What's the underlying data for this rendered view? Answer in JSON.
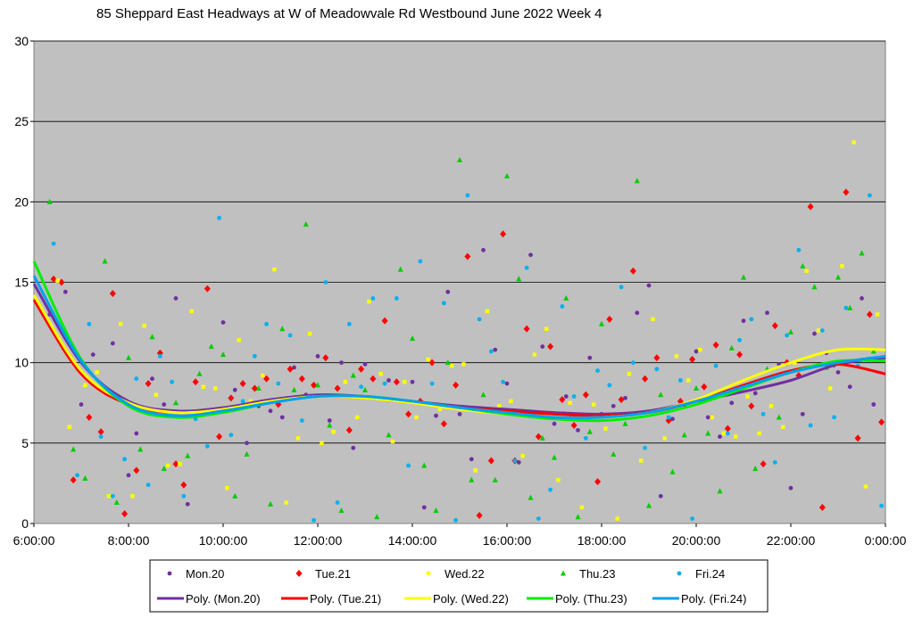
{
  "chart_data": {
    "type": "scatter",
    "title": "85 Sheppard East Headways at W of Meadowvale Rd Westbound June 2022  Week 4",
    "xlabel": "",
    "ylabel": "",
    "x_range": [
      "6:00:00",
      "0:00:00"
    ],
    "x_ticks": [
      "6:00:00",
      "8:00:00",
      "10:00:00",
      "12:00:00",
      "14:00:00",
      "16:00:00",
      "18:00:00",
      "20:00:00",
      "22:00:00",
      "0:00:00"
    ],
    "ylim": [
      0,
      30
    ],
    "y_ticks": [
      "0",
      "5",
      "10",
      "15",
      "20",
      "25",
      "30"
    ],
    "grid": "horizontal",
    "plot_background": "#c0c0c0",
    "legend_position": "bottom",
    "series": [
      {
        "name": "Mon.20",
        "marker": "circle",
        "color": "#7030a0",
        "x": [
          "6:20",
          "6:40",
          "7:00",
          "7:15",
          "7:40",
          "8:00",
          "8:10",
          "8:30",
          "8:45",
          "9:00",
          "9:15",
          "9:30",
          "10:00",
          "10:15",
          "10:30",
          "10:45",
          "11:00",
          "11:15",
          "11:30",
          "11:45",
          "12:00",
          "12:15",
          "12:30",
          "12:45",
          "13:00",
          "13:30",
          "14:00",
          "14:15",
          "14:30",
          "14:45",
          "15:00",
          "15:15",
          "15:30",
          "15:45",
          "16:00",
          "16:15",
          "16:30",
          "16:45",
          "17:00",
          "17:15",
          "17:30",
          "17:45",
          "18:00",
          "18:15",
          "18:30",
          "18:45",
          "19:00",
          "19:15",
          "19:30",
          "19:45",
          "20:00",
          "20:15",
          "20:30",
          "20:45",
          "21:00",
          "21:15",
          "21:30",
          "21:45",
          "22:00",
          "22:15",
          "22:30",
          "22:45",
          "23:00",
          "23:15",
          "23:30",
          "23:45"
        ],
        "y": [
          13.0,
          14.4,
          7.4,
          10.5,
          11.2,
          3.0,
          5.6,
          9.0,
          7.4,
          14.0,
          1.2,
          6.8,
          12.5,
          8.3,
          5.0,
          7.3,
          7.0,
          6.6,
          9.7,
          8.0,
          10.4,
          6.4,
          10.0,
          4.7,
          9.9,
          8.9,
          8.8,
          1.0,
          6.7,
          14.4,
          6.8,
          4.0,
          17.0,
          10.8,
          8.7,
          3.8,
          16.7,
          11.0,
          6.2,
          7.9,
          5.8,
          10.3,
          6.8,
          7.3,
          7.8,
          13.1,
          14.8,
          1.7,
          6.5,
          7.4,
          10.7,
          6.6,
          5.4,
          7.5,
          12.6,
          8.1,
          13.1,
          9.9,
          2.2,
          6.8,
          11.8,
          10.6,
          9.4,
          8.5,
          14.0,
          7.4
        ]
      },
      {
        "name": "Tue.21",
        "marker": "diamond",
        "color": "#ff0000",
        "x": [
          "6:25",
          "6:35",
          "6:50",
          "7:10",
          "7:25",
          "7:40",
          "7:55",
          "8:10",
          "8:25",
          "8:40",
          "9:00",
          "9:10",
          "9:25",
          "9:40",
          "9:55",
          "10:10",
          "10:25",
          "10:40",
          "10:55",
          "11:10",
          "11:25",
          "11:40",
          "11:55",
          "12:10",
          "12:25",
          "12:40",
          "12:55",
          "13:10",
          "13:25",
          "13:40",
          "13:55",
          "14:10",
          "14:25",
          "14:40",
          "14:55",
          "15:10",
          "15:25",
          "15:40",
          "15:55",
          "16:10",
          "16:25",
          "16:40",
          "16:55",
          "17:10",
          "17:25",
          "17:40",
          "17:55",
          "18:10",
          "18:25",
          "18:40",
          "18:55",
          "19:10",
          "19:25",
          "19:40",
          "19:55",
          "20:10",
          "20:25",
          "20:40",
          "20:55",
          "21:10",
          "21:25",
          "21:40",
          "21:55",
          "22:10",
          "22:25",
          "22:40",
          "22:55",
          "23:10",
          "23:25",
          "23:40",
          "23:55"
        ],
        "y": [
          15.2,
          15.0,
          2.7,
          6.6,
          5.7,
          14.3,
          0.6,
          3.3,
          8.7,
          10.6,
          3.7,
          2.4,
          8.8,
          14.6,
          5.4,
          7.8,
          8.7,
          8.4,
          9.0,
          7.4,
          9.6,
          9.0,
          8.6,
          10.3,
          8.4,
          5.8,
          9.6,
          9.0,
          12.6,
          8.8,
          6.8,
          7.6,
          10.0,
          6.2,
          8.6,
          16.6,
          0.5,
          3.9,
          18.0,
          3.9,
          12.1,
          5.4,
          11.0,
          7.7,
          6.1,
          8.0,
          2.6,
          12.7,
          7.7,
          15.7,
          9.0,
          10.3,
          6.4,
          7.6,
          10.2,
          8.5,
          11.1,
          5.9,
          10.5,
          7.3,
          3.7,
          12.3,
          10.0,
          9.2,
          19.7,
          1.0,
          9.9,
          20.6,
          5.3,
          13.0,
          6.3
        ]
      },
      {
        "name": "Wed.22",
        "marker": "square",
        "color": "#ffff00",
        "x": [
          "6:30",
          "6:45",
          "7:05",
          "7:20",
          "7:35",
          "7:50",
          "8:05",
          "8:20",
          "8:35",
          "8:50",
          "9:05",
          "9:20",
          "9:35",
          "9:50",
          "10:05",
          "10:20",
          "10:35",
          "10:50",
          "11:05",
          "11:20",
          "11:35",
          "11:50",
          "12:05",
          "12:20",
          "12:35",
          "12:50",
          "13:05",
          "13:20",
          "13:35",
          "13:50",
          "14:05",
          "14:20",
          "14:35",
          "14:50",
          "15:05",
          "15:20",
          "15:35",
          "15:50",
          "16:05",
          "16:20",
          "16:35",
          "16:50",
          "17:05",
          "17:20",
          "17:35",
          "17:50",
          "18:05",
          "18:20",
          "18:35",
          "18:50",
          "19:05",
          "19:20",
          "19:35",
          "19:50",
          "20:05",
          "20:20",
          "20:35",
          "20:50",
          "21:05",
          "21:20",
          "21:35",
          "21:50",
          "22:05",
          "22:20",
          "22:35",
          "22:50",
          "23:05",
          "23:20",
          "23:35",
          "23:50"
        ],
        "y": [
          15.1,
          6.0,
          8.6,
          9.4,
          1.7,
          12.4,
          1.7,
          12.3,
          8.0,
          3.6,
          3.7,
          13.2,
          8.5,
          8.4,
          2.2,
          11.4,
          7.6,
          9.2,
          15.8,
          1.3,
          5.3,
          11.8,
          5.0,
          5.7,
          8.8,
          6.6,
          13.8,
          9.3,
          5.1,
          8.8,
          6.6,
          10.2,
          7.1,
          9.8,
          9.9,
          3.3,
          13.2,
          7.3,
          7.6,
          4.2,
          10.5,
          12.1,
          2.7,
          7.5,
          1.0,
          7.4,
          5.9,
          0.3,
          9.3,
          3.9,
          12.7,
          5.3,
          10.4,
          8.9,
          10.8,
          6.6,
          5.6,
          5.4,
          7.9,
          5.6,
          7.3,
          6.0,
          10.0,
          15.7,
          12.0,
          8.4,
          16.0,
          23.7,
          2.3,
          13.0
        ]
      },
      {
        "name": "Thu.23",
        "marker": "triangle",
        "color": "#00cc00",
        "x": [
          "6:20",
          "6:50",
          "7:05",
          "7:30",
          "7:45",
          "8:00",
          "8:15",
          "8:30",
          "8:45",
          "9:00",
          "9:15",
          "9:30",
          "9:45",
          "10:00",
          "10:15",
          "10:30",
          "10:45",
          "11:00",
          "11:15",
          "11:30",
          "11:45",
          "12:00",
          "12:15",
          "12:30",
          "12:45",
          "13:00",
          "13:15",
          "13:30",
          "13:45",
          "14:00",
          "14:15",
          "14:30",
          "14:45",
          "15:00",
          "15:15",
          "15:30",
          "15:45",
          "16:00",
          "16:15",
          "16:30",
          "16:45",
          "17:00",
          "17:15",
          "17:30",
          "17:45",
          "18:00",
          "18:15",
          "18:30",
          "18:45",
          "19:00",
          "19:15",
          "19:30",
          "19:45",
          "20:00",
          "20:15",
          "20:30",
          "20:45",
          "21:00",
          "21:15",
          "21:30",
          "21:45",
          "22:00",
          "22:15",
          "22:30",
          "22:45",
          "23:00",
          "23:15",
          "23:30",
          "23:45"
        ],
        "y": [
          20.0,
          4.6,
          2.8,
          16.3,
          1.3,
          10.3,
          4.6,
          11.6,
          3.4,
          7.5,
          4.2,
          9.3,
          11.0,
          10.5,
          1.7,
          4.3,
          8.4,
          1.2,
          12.1,
          8.3,
          18.6,
          8.6,
          6.1,
          0.8,
          9.2,
          8.3,
          0.4,
          5.5,
          15.8,
          11.5,
          3.6,
          0.8,
          10.0,
          22.6,
          2.7,
          8.0,
          2.7,
          21.6,
          15.2,
          1.6,
          5.3,
          4.1,
          14.0,
          0.4,
          5.7,
          12.4,
          4.3,
          6.2,
          21.3,
          1.1,
          8.0,
          3.2,
          5.5,
          8.4,
          5.6,
          2.0,
          10.9,
          15.3,
          3.4,
          9.6,
          6.6,
          11.9,
          16.0,
          14.7,
          9.7,
          15.3,
          13.4,
          16.8,
          10.7
        ]
      },
      {
        "name": "Fri.24",
        "marker": "circle",
        "color": "#00b0f0",
        "x": [
          "6:25",
          "6:55",
          "7:10",
          "7:25",
          "7:40",
          "7:55",
          "8:10",
          "8:25",
          "8:40",
          "8:55",
          "9:10",
          "9:25",
          "9:40",
          "9:55",
          "10:10",
          "10:25",
          "10:40",
          "10:55",
          "11:10",
          "11:25",
          "11:40",
          "11:55",
          "12:10",
          "12:25",
          "12:40",
          "12:55",
          "13:10",
          "13:25",
          "13:40",
          "13:55",
          "14:10",
          "14:25",
          "14:40",
          "14:55",
          "15:10",
          "15:25",
          "15:40",
          "15:55",
          "16:10",
          "16:25",
          "16:40",
          "16:55",
          "17:10",
          "17:25",
          "17:40",
          "17:55",
          "18:10",
          "18:25",
          "18:40",
          "18:55",
          "19:10",
          "19:25",
          "19:40",
          "19:55",
          "20:10",
          "20:25",
          "20:40",
          "20:55",
          "21:10",
          "21:25",
          "21:40",
          "21:55",
          "22:10",
          "22:25",
          "22:40",
          "22:55",
          "23:10",
          "23:25",
          "23:40",
          "23:55"
        ],
        "y": [
          17.4,
          3.0,
          12.4,
          5.4,
          1.7,
          4.0,
          9.0,
          2.4,
          10.4,
          8.8,
          1.7,
          6.5,
          4.8,
          19.0,
          5.5,
          7.6,
          10.4,
          12.4,
          8.7,
          11.7,
          6.4,
          0.2,
          15.0,
          1.3,
          12.4,
          8.5,
          14.0,
          8.7,
          14.0,
          3.6,
          16.3,
          8.7,
          13.7,
          0.2,
          20.4,
          12.7,
          10.7,
          8.8,
          3.9,
          15.9,
          0.3,
          2.1,
          13.5,
          7.9,
          5.3,
          9.5,
          8.6,
          14.7,
          10.0,
          4.7,
          9.6,
          6.6,
          8.9,
          0.3,
          7.6,
          9.8,
          5.6,
          11.4,
          12.7,
          6.8,
          3.8,
          11.7,
          17.0,
          6.1,
          12.0,
          6.6,
          13.4,
          9.8,
          20.4,
          1.1
        ]
      },
      {
        "name": "Poly. (Mon.20)",
        "type": "trendline",
        "color": "#7030a0",
        "x": [
          "6:00",
          "7:00",
          "8:00",
          "9:00",
          "10:00",
          "11:00",
          "12:00",
          "13:00",
          "14:00",
          "15:00",
          "16:00",
          "17:00",
          "18:00",
          "19:00",
          "20:00",
          "21:00",
          "22:00",
          "23:00",
          "0:00"
        ],
        "y": [
          14.9,
          10.0,
          7.6,
          7.0,
          7.2,
          7.7,
          8.0,
          7.9,
          7.6,
          7.3,
          7.1,
          6.9,
          6.8,
          7.0,
          7.6,
          8.2,
          8.9,
          9.9,
          10.3
        ]
      },
      {
        "name": "Poly. (Tue.21)",
        "type": "trendline",
        "color": "#ff0000",
        "x": [
          "6:00",
          "7:00",
          "8:00",
          "9:00",
          "10:00",
          "11:00",
          "12:00",
          "13:00",
          "14:00",
          "15:00",
          "16:00",
          "17:00",
          "18:00",
          "19:00",
          "20:00",
          "21:00",
          "22:00",
          "23:00",
          "0:00"
        ],
        "y": [
          13.9,
          9.3,
          7.4,
          6.9,
          7.1,
          7.6,
          7.9,
          7.8,
          7.5,
          7.2,
          7.0,
          6.8,
          6.7,
          6.9,
          7.6,
          8.6,
          9.5,
          9.9,
          9.3
        ]
      },
      {
        "name": "Poly. (Wed.22)",
        "type": "trendline",
        "color": "#ffff00",
        "x": [
          "6:00",
          "7:00",
          "8:00",
          "9:00",
          "10:00",
          "11:00",
          "12:00",
          "13:00",
          "14:00",
          "15:00",
          "16:00",
          "17:00",
          "18:00",
          "19:00",
          "20:00",
          "21:00",
          "22:00",
          "23:00",
          "0:00"
        ],
        "y": [
          14.2,
          9.5,
          7.5,
          6.9,
          7.1,
          7.6,
          7.9,
          7.8,
          7.5,
          7.1,
          6.8,
          6.6,
          6.6,
          6.9,
          7.7,
          8.9,
          10.0,
          10.8,
          10.8
        ]
      },
      {
        "name": "Poly. (Thu.23)",
        "type": "trendline",
        "color": "#00ee00",
        "x": [
          "6:00",
          "7:00",
          "8:00",
          "9:00",
          "10:00",
          "11:00",
          "12:00",
          "13:00",
          "14:00",
          "15:00",
          "16:00",
          "17:00",
          "18:00",
          "19:00",
          "20:00",
          "21:00",
          "22:00",
          "23:00",
          "0:00"
        ],
        "y": [
          16.3,
          10.2,
          7.3,
          6.6,
          6.9,
          7.5,
          7.9,
          7.9,
          7.6,
          7.2,
          6.8,
          6.5,
          6.4,
          6.7,
          7.4,
          8.4,
          9.4,
          10.1,
          10.1
        ]
      },
      {
        "name": "Poly. (Fri.24)",
        "type": "trendline",
        "color": "#00a0f0",
        "x": [
          "6:00",
          "7:00",
          "8:00",
          "9:00",
          "10:00",
          "11:00",
          "12:00",
          "13:00",
          "14:00",
          "15:00",
          "16:00",
          "17:00",
          "18:00",
          "19:00",
          "20:00",
          "21:00",
          "22:00",
          "23:00",
          "0:00"
        ],
        "y": [
          15.4,
          10.1,
          7.4,
          6.7,
          7.0,
          7.5,
          7.9,
          7.9,
          7.6,
          7.2,
          6.9,
          6.6,
          6.6,
          6.9,
          7.6,
          8.5,
          9.4,
          10.0,
          10.4
        ]
      }
    ]
  }
}
